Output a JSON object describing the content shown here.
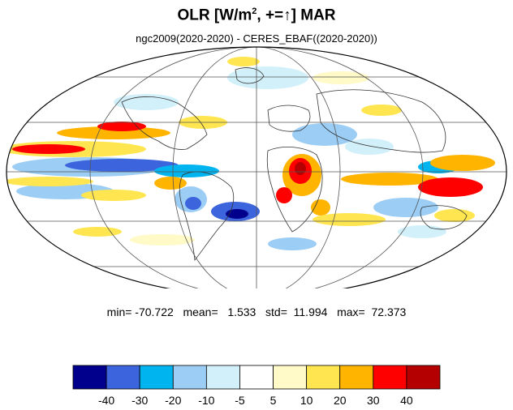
{
  "header": {
    "title_prefix": "OLR [W/m",
    "title_sup": "2",
    "title_suffix": ", +=↑] MAR",
    "subtitle": "ngc2009(2020-2020) - CERES_EBAF((2020-2020))"
  },
  "stats": {
    "text": "min= -70.722   mean=   1.533   std=  11.994   max=  72.373"
  },
  "colorbar": {
    "colors": [
      "#00008c",
      "#3c64dc",
      "#00b4f0",
      "#9ccdf5",
      "#d2f0fa",
      "#ffffff",
      "#fffac8",
      "#ffe650",
      "#ffb400",
      "#ff0000",
      "#b40000"
    ],
    "labels": [
      "-40",
      "-30",
      "-20",
      "-10",
      "-5",
      "5",
      "10",
      "20",
      "30",
      "40"
    ]
  },
  "map": {
    "projection": "Mollweide"
  }
}
